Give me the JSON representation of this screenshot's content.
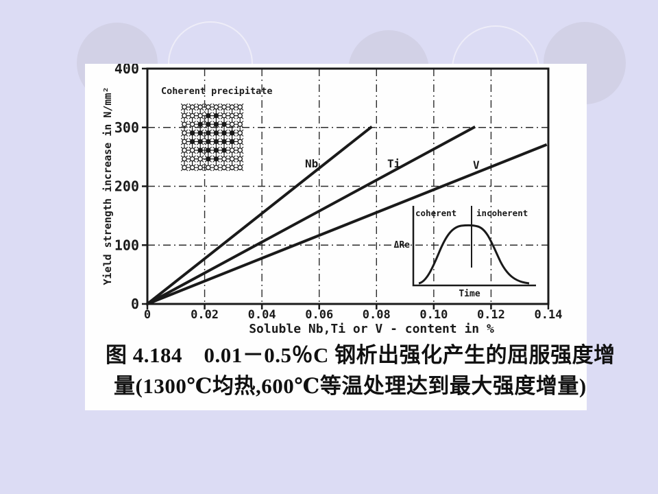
{
  "slide": {
    "background_color": "#dcdcf4",
    "panel_color": "#fefefe",
    "ink_color": "#1a1a1a",
    "decor_circle_fill": "#d2d1e6",
    "decor_circle_outline_color": "#eeedf8"
  },
  "caption": {
    "line1": "图 4.184　0.01－0.5％C 钢析出强化产生的屈服强度增",
    "line2": "量(1300℃均热,600℃等温处理达到最大强度增量)"
  },
  "chart_data": {
    "type": "line",
    "title": "",
    "xlabel": "Soluble Nb,Ti or V - content in %",
    "ylabel": "Yield strength increase in N/mm²",
    "xlim": [
      0,
      0.14
    ],
    "ylim": [
      0,
      400
    ],
    "x_ticks": [
      "0",
      "0.02",
      "0.04",
      "0.06",
      "0.08",
      "0.10",
      "0.12",
      "0.14"
    ],
    "y_ticks": [
      "0",
      "100",
      "200",
      "300",
      "400"
    ],
    "grid": "dash-dot grid at every tick, partially faded (scanned figure)",
    "legend_position": "labels beside lines",
    "series": [
      {
        "name": "Nb",
        "x": [
          0,
          0.078
        ],
        "y": [
          0,
          300
        ]
      },
      {
        "name": "Ti",
        "x": [
          0,
          0.114
        ],
        "y": [
          0,
          300
        ]
      },
      {
        "name": "V",
        "x": [
          0,
          0.139
        ],
        "y": [
          0,
          270
        ]
      }
    ],
    "insets": {
      "lattice_label": "Coherent precipitate",
      "lattice_description": "schematic crystal lattice with a coherent precipitate cluster of filled atoms inside open-circle matrix atoms",
      "bell": {
        "left_region_label": "coherent",
        "right_region_label": "incoherent",
        "ylabel": "ΔRe",
        "xlabel": "Time",
        "description": "bell-shaped curve: ΔRe rises with time, peaks at the coherent/incoherent transition, then falls"
      }
    }
  }
}
